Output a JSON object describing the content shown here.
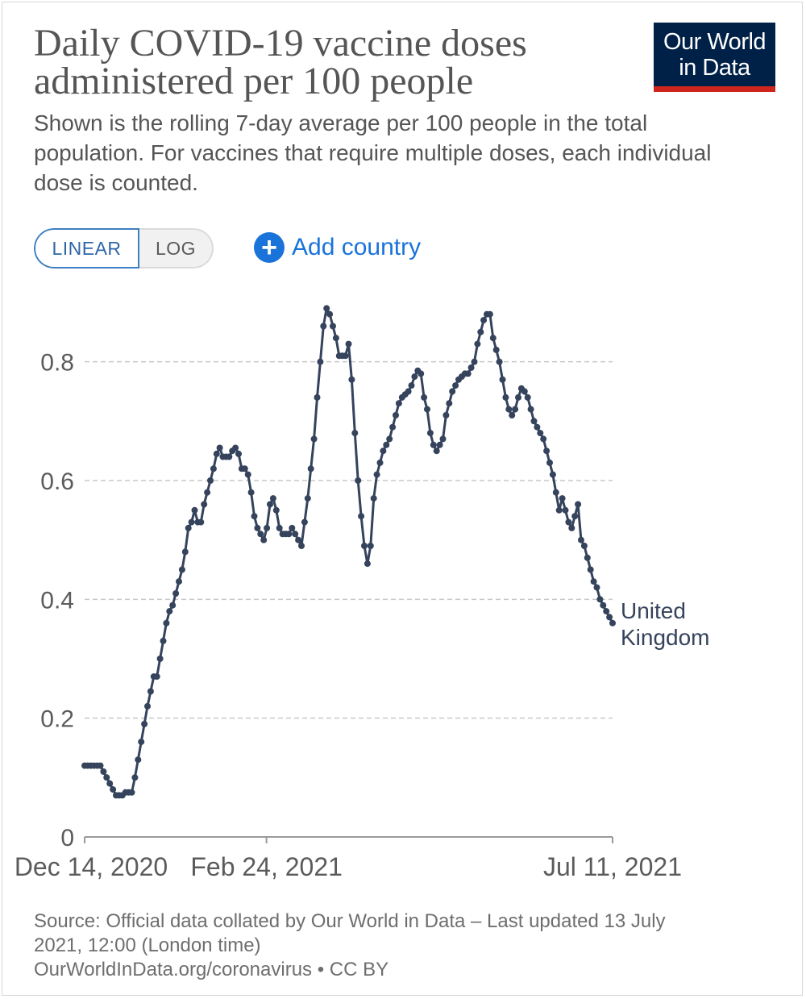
{
  "header": {
    "title": "Daily COVID-19 vaccine doses administered per 100 people",
    "subtitle": "Shown is the rolling 7-day average per 100 people in the total population. For vaccines that require multiple doses, each individual dose is counted.",
    "logo_line1": "Our World",
    "logo_line2": "in Data"
  },
  "controls": {
    "linear_label": "LINEAR",
    "log_label": "LOG",
    "add_country_label": "Add country"
  },
  "colors": {
    "series": "#35435c",
    "grid": "#c8c8c8",
    "axis": "#9a9a9a",
    "text": "#555555",
    "accent": "#1a73d9",
    "logo_bg": "#002147",
    "logo_bar": "#ce261e"
  },
  "icons": {
    "add": "plus-circle-icon"
  },
  "chart_data": {
    "type": "line",
    "x_start": "2020-12-14",
    "x_end": "2021-07-11",
    "x_ticks": [
      {
        "date": "2020-12-14",
        "label": "Dec 14, 2020"
      },
      {
        "date": "2021-02-24",
        "label": "Feb 24, 2021"
      },
      {
        "date": "2021-07-11",
        "label": "Jul 11, 2021"
      }
    ],
    "ylim": [
      0,
      0.9
    ],
    "y_ticks": [
      {
        "value": 0,
        "label": "0"
      },
      {
        "value": 0.2,
        "label": "0.2"
      },
      {
        "value": 0.4,
        "label": "0.4"
      },
      {
        "value": 0.6,
        "label": "0.6"
      },
      {
        "value": 0.8,
        "label": "0.8"
      }
    ],
    "grid": "horizontal dashed",
    "series": [
      {
        "name": "United Kingdom",
        "label_lines": [
          "United",
          "Kingdom"
        ],
        "values": [
          0.12,
          0.12,
          0.12,
          0.12,
          0.12,
          0.12,
          0.11,
          0.1,
          0.09,
          0.08,
          0.07,
          0.07,
          0.07,
          0.075,
          0.075,
          0.075,
          0.1,
          0.13,
          0.16,
          0.19,
          0.22,
          0.245,
          0.27,
          0.27,
          0.3,
          0.33,
          0.36,
          0.38,
          0.39,
          0.41,
          0.43,
          0.45,
          0.48,
          0.52,
          0.53,
          0.55,
          0.53,
          0.53,
          0.56,
          0.58,
          0.6,
          0.62,
          0.645,
          0.655,
          0.64,
          0.64,
          0.64,
          0.65,
          0.655,
          0.645,
          0.62,
          0.62,
          0.61,
          0.58,
          0.54,
          0.52,
          0.51,
          0.5,
          0.52,
          0.56,
          0.57,
          0.55,
          0.52,
          0.51,
          0.51,
          0.51,
          0.52,
          0.51,
          0.5,
          0.49,
          0.53,
          0.57,
          0.62,
          0.67,
          0.74,
          0.8,
          0.86,
          0.89,
          0.88,
          0.86,
          0.84,
          0.81,
          0.81,
          0.81,
          0.83,
          0.77,
          0.68,
          0.6,
          0.54,
          0.49,
          0.46,
          0.49,
          0.57,
          0.61,
          0.63,
          0.65,
          0.66,
          0.67,
          0.69,
          0.71,
          0.73,
          0.74,
          0.745,
          0.75,
          0.76,
          0.775,
          0.785,
          0.78,
          0.74,
          0.72,
          0.68,
          0.66,
          0.65,
          0.66,
          0.67,
          0.71,
          0.73,
          0.75,
          0.76,
          0.77,
          0.775,
          0.78,
          0.78,
          0.79,
          0.8,
          0.83,
          0.85,
          0.87,
          0.88,
          0.88,
          0.84,
          0.82,
          0.8,
          0.77,
          0.74,
          0.72,
          0.71,
          0.72,
          0.74,
          0.755,
          0.75,
          0.74,
          0.72,
          0.7,
          0.69,
          0.68,
          0.67,
          0.65,
          0.63,
          0.61,
          0.58,
          0.55,
          0.57,
          0.55,
          0.53,
          0.52,
          0.54,
          0.56,
          0.5,
          0.49,
          0.47,
          0.45,
          0.43,
          0.42,
          0.4,
          0.39,
          0.38,
          0.37,
          0.36
        ]
      }
    ]
  },
  "footer": {
    "source_line1": "Source: Official data collated by Our World in Data – Last updated 13 July",
    "source_line2": "2021, 12:00 (London time)",
    "source_line3": "OurWorldInData.org/coronavirus • CC BY"
  }
}
